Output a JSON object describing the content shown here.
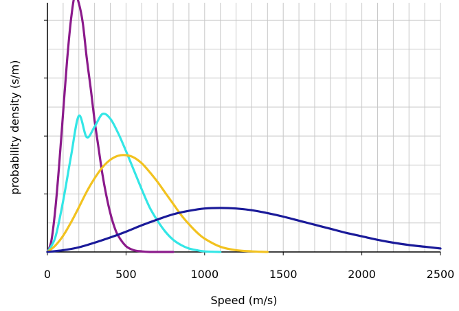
{
  "chart_data": {
    "type": "line",
    "xlabel": "Speed (m/s)",
    "ylabel": "probability density (s/m)",
    "xlim": [
      0,
      2500
    ],
    "ylim": [
      0,
      0.0043
    ],
    "x_ticks": [
      0,
      500,
      1000,
      1500,
      2000,
      2500
    ],
    "x_tick_labels": [
      "0",
      "500",
      "1000",
      "1500",
      "2000",
      "2500"
    ],
    "y_ticks": [
      0.001,
      0.002,
      0.003,
      0.004
    ],
    "y_tick_labels_shown": false,
    "grid": true,
    "legend": "none",
    "series": [
      {
        "color": "#8B1A8B",
        "x": [
          0,
          25,
          50,
          75,
          100,
          125,
          150,
          175,
          200,
          225,
          250,
          275,
          300,
          325,
          350,
          375,
          400,
          425,
          450,
          500,
          550,
          600,
          650,
          700,
          800
        ],
        "y": [
          0,
          0.00019,
          0.00073,
          0.00151,
          0.00241,
          0.0033,
          0.00401,
          0.00444,
          0.00429,
          0.00395,
          0.00335,
          0.00283,
          0.00227,
          0.0018,
          0.00134,
          0.00097,
          0.00067,
          0.00044,
          0.00028,
          0.0001,
          3e-05,
          1e-05,
          0,
          0,
          0
        ]
      },
      {
        "color": "#33E6E6",
        "x": [
          0,
          50,
          100,
          150,
          200,
          250,
          300,
          350,
          400,
          450,
          500,
          550,
          600,
          650,
          700,
          750,
          800,
          850,
          900,
          950,
          1000,
          1100
        ],
        "y": [
          0,
          0.00025,
          0.00088,
          0.00165,
          0.00235,
          0.00198,
          0.00216,
          0.00238,
          0.0023,
          0.00205,
          0.00174,
          0.00141,
          0.00108,
          0.00077,
          0.00054,
          0.00035,
          0.00021,
          0.00012,
          6e-05,
          3e-05,
          1e-05,
          0
        ]
      },
      {
        "color": "#F2C21F",
        "x": [
          0,
          50,
          100,
          150,
          200,
          250,
          300,
          350,
          400,
          450,
          500,
          550,
          600,
          650,
          700,
          750,
          800,
          850,
          900,
          950,
          1000,
          1100,
          1200,
          1300,
          1400
        ],
        "y": [
          0,
          0.00011,
          0.00028,
          0.00051,
          0.00077,
          0.00104,
          0.00127,
          0.00146,
          0.00159,
          0.00166,
          0.00167,
          0.00163,
          0.00153,
          0.00138,
          0.00121,
          0.00102,
          0.00083,
          0.00064,
          0.00048,
          0.00034,
          0.00023,
          9e-05,
          3e-05,
          1e-05,
          0
        ]
      },
      {
        "color": "#1A1A99",
        "x": [
          0,
          100,
          200,
          300,
          400,
          500,
          600,
          700,
          800,
          900,
          1000,
          1100,
          1200,
          1300,
          1400,
          1500,
          1600,
          1700,
          1800,
          1900,
          2000,
          2100,
          2200,
          2300,
          2400,
          2500
        ],
        "y": [
          0,
          3e-05,
          8e-05,
          0.00016,
          0.00025,
          0.00035,
          0.00046,
          0.00056,
          0.00065,
          0.00071,
          0.00075,
          0.00076,
          0.00075,
          0.00072,
          0.00067,
          0.00061,
          0.00054,
          0.00047,
          0.0004,
          0.00033,
          0.00027,
          0.00021,
          0.00016,
          0.00012,
          9e-05,
          6e-05
        ]
      }
    ]
  }
}
